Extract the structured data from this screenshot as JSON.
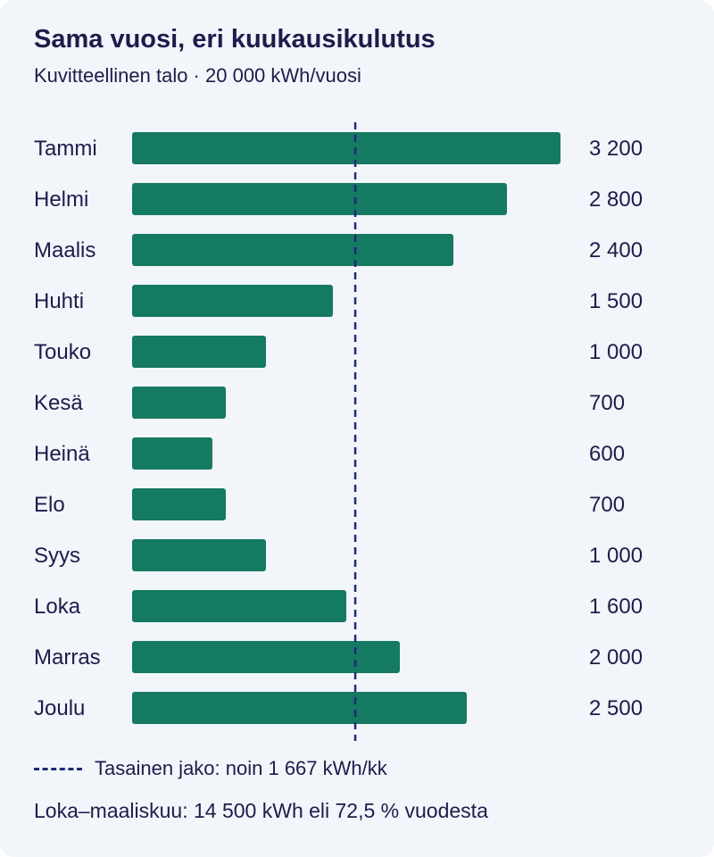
{
  "title": "Sama vuosi, eri kuukausikulutus",
  "subtitle": "Kuvitteellinen talo · 20 000 kWh/vuosi",
  "chart_data": {
    "type": "bar",
    "orientation": "horizontal",
    "categories": [
      "Tammi",
      "Helmi",
      "Maalis",
      "Huhti",
      "Touko",
      "Kesä",
      "Heinä",
      "Elo",
      "Syys",
      "Loka",
      "Marras",
      "Joulu"
    ],
    "values": [
      3200,
      2800,
      2400,
      1500,
      1000,
      700,
      600,
      700,
      1000,
      1600,
      2000,
      2500
    ],
    "value_labels": [
      "3 200",
      "2 800",
      "2 400",
      "1 500",
      "1 000",
      "700",
      "600",
      "700",
      "1 000",
      "1 600",
      "2 000",
      "2 500"
    ],
    "xlim": [
      0,
      3200
    ],
    "reference_line": {
      "value": 1667,
      "style": "dashed",
      "label": "Tasainen jako: noin 1 667 kWh/kk"
    },
    "grid": false,
    "bar_color": "#157a62",
    "reference_color": "#1e2a78"
  },
  "legend_label": "Tasainen jako: noin 1 667 kWh/kk",
  "note": "Loka–maaliskuu: 14 500 kWh eli 72,5 % vuodesta"
}
